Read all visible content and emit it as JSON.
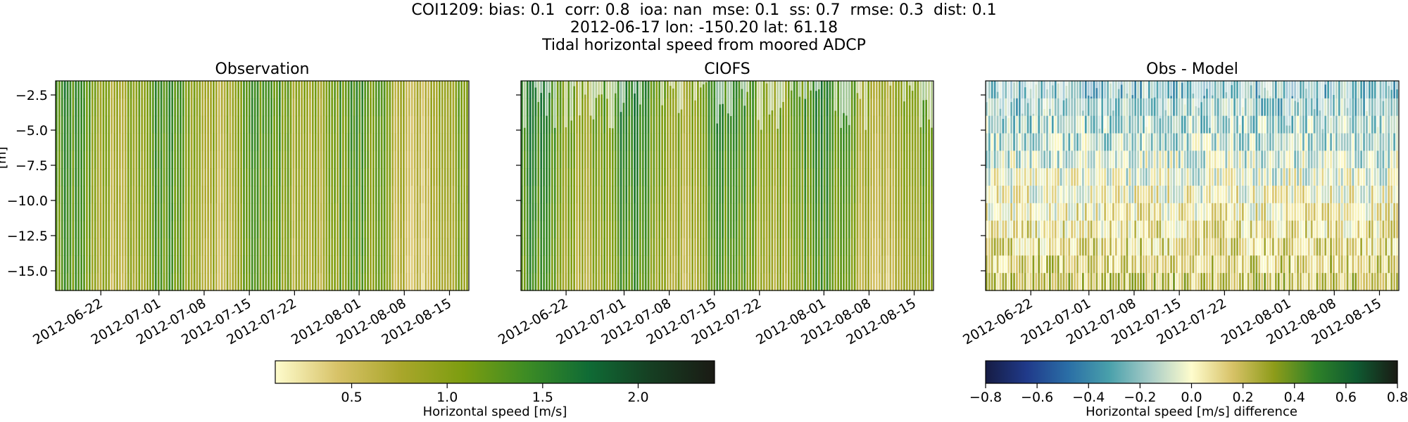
{
  "figure": {
    "title_lines": [
      "COI1209: bias: 0.1  corr: 0.8  ioa: nan  mse: 0.1  ss: 0.7  rmse: 0.3  dist: 0.1",
      "2012-06-17 lon: -150.20 lat: 61.18",
      "Tidal horizontal speed from moored ADCP"
    ],
    "ylabel_fragment": "[m]"
  },
  "chart_data": [
    {
      "type": "heatmap",
      "title": "Observation",
      "xlabel": "",
      "ylabel": "Depth [m]",
      "x_tick_labels": [
        "2012-06-22",
        "2012-07-01",
        "2012-07-08",
        "2012-07-15",
        "2012-07-22",
        "2012-08-01",
        "2012-08-08",
        "2012-08-15"
      ],
      "x_tick_days": [
        5,
        14,
        21,
        28,
        35,
        45,
        52,
        59
      ],
      "x_range_days": [
        -2,
        62
      ],
      "y_ticks": [
        -2.5,
        -5.0,
        -7.5,
        -10.0,
        -12.5,
        -15.0
      ],
      "y_tick_labels": [
        "−2.5",
        "−5.0",
        "−7.5",
        "−10.0",
        "−12.5",
        "−15.0"
      ],
      "ylim": [
        -16.4,
        -1.5
      ],
      "colormap": "speed",
      "clim": [
        0.1,
        2.4
      ],
      "field": "obs"
    },
    {
      "type": "heatmap",
      "title": "CIOFS",
      "xlabel": "",
      "ylabel": "",
      "x_tick_labels": [
        "2012-06-22",
        "2012-07-01",
        "2012-07-08",
        "2012-07-15",
        "2012-07-22",
        "2012-08-01",
        "2012-08-08",
        "2012-08-15"
      ],
      "x_tick_days": [
        5,
        14,
        21,
        28,
        35,
        45,
        52,
        59
      ],
      "x_range_days": [
        -2,
        62
      ],
      "y_ticks": [
        -2.5,
        -5.0,
        -7.5,
        -10.0,
        -12.5,
        -15.0
      ],
      "ylim": [
        -16.4,
        -1.5
      ],
      "colormap": "speed",
      "clim": [
        0.1,
        2.4
      ],
      "field": "model"
    },
    {
      "type": "heatmap",
      "title": "Obs - Model",
      "xlabel": "",
      "ylabel": "",
      "x_tick_labels": [
        "2012-06-22",
        "2012-07-01",
        "2012-07-08",
        "2012-07-15",
        "2012-07-22",
        "2012-08-01",
        "2012-08-08",
        "2012-08-15"
      ],
      "x_tick_days": [
        5,
        14,
        21,
        28,
        35,
        45,
        52,
        59
      ],
      "x_range_days": [
        -2,
        62
      ],
      "y_ticks": [
        -2.5,
        -5.0,
        -7.5,
        -10.0,
        -12.5,
        -15.0
      ],
      "ylim": [
        -16.4,
        -1.5
      ],
      "colormap": "diff",
      "clim": [
        -0.8,
        0.8
      ],
      "field": "diff"
    }
  ],
  "colorbars": [
    {
      "label": "Horizontal speed [m/s]",
      "min": 0.1,
      "max": 2.4,
      "ticks": [
        0.5,
        1.0,
        1.5,
        2.0
      ],
      "tick_labels": [
        "0.5",
        "1.0",
        "1.5",
        "2.0"
      ],
      "colors": [
        "#fefccd",
        "#d7c267",
        "#a9a62b",
        "#7c9d10",
        "#3d8c24",
        "#0f6b35",
        "#163e22",
        "#1a1a14"
      ]
    },
    {
      "label": "Horizontal speed [m/s] difference",
      "min": -0.8,
      "max": 0.8,
      "ticks": [
        -0.8,
        -0.6,
        -0.4,
        -0.2,
        0.0,
        0.2,
        0.4,
        0.6,
        0.8
      ],
      "tick_labels": [
        "−0.8",
        "−0.6",
        "−0.4",
        "−0.2",
        "0.0",
        "0.2",
        "0.4",
        "0.6",
        "0.8"
      ],
      "colors": [
        "#161c44",
        "#203a8a",
        "#2a6ea6",
        "#49a0ab",
        "#a7ccc7",
        "#fefccd",
        "#d7c267",
        "#8e9c1a",
        "#2f8228",
        "#0f5a31",
        "#1a1a14"
      ]
    }
  ]
}
